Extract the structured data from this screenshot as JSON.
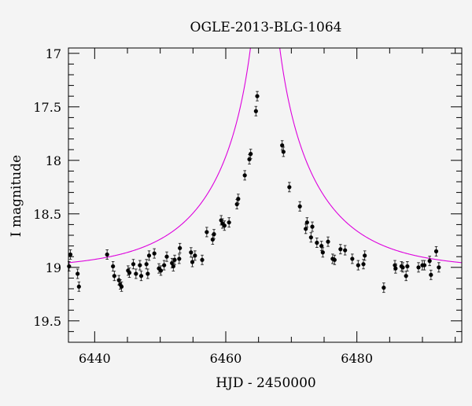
{
  "chart_data": {
    "type": "scatter",
    "title": "OGLE-2013-BLG-1064",
    "xlabel": "HJD - 2450000",
    "ylabel": "I magnitude",
    "xlim": [
      6436,
      6496
    ],
    "ylim": [
      19.7,
      16.95
    ],
    "y_inverted": true,
    "grid": false,
    "legend": "none",
    "x_ticks": [
      6440,
      6460,
      6480
    ],
    "x_tick_labels": [
      "6440",
      "6460",
      "6480"
    ],
    "y_ticks": [
      17,
      17.5,
      18,
      18.5,
      19,
      19.5
    ],
    "y_tick_labels": [
      "17",
      "17.5",
      "18",
      "18.5",
      "19",
      "19.5"
    ],
    "series": [
      {
        "type": "scatter",
        "color": "#000000",
        "points": [
          [
            6436.1,
            18.99
          ],
          [
            6436.3,
            18.88
          ],
          [
            6437.4,
            19.06
          ],
          [
            6437.6,
            19.18
          ],
          [
            6441.9,
            18.88
          ],
          [
            6442.8,
            18.99
          ],
          [
            6443.0,
            19.08
          ],
          [
            6443.7,
            19.12
          ],
          [
            6443.9,
            19.16
          ],
          [
            6444.1,
            19.18
          ],
          [
            6445.1,
            19.03
          ],
          [
            6445.3,
            19.05
          ],
          [
            6445.9,
            18.97
          ],
          [
            6446.3,
            19.06
          ],
          [
            6446.9,
            18.98
          ],
          [
            6447.1,
            19.08
          ],
          [
            6447.9,
            18.97
          ],
          [
            6448.1,
            19.06
          ],
          [
            6448.3,
            18.89
          ],
          [
            6449.1,
            18.87
          ],
          [
            6449.8,
            19.01
          ],
          [
            6450.1,
            19.03
          ],
          [
            6450.6,
            18.98
          ],
          [
            6451.0,
            18.9
          ],
          [
            6451.8,
            18.96
          ],
          [
            6452.0,
            18.99
          ],
          [
            6452.2,
            18.93
          ],
          [
            6452.9,
            18.92
          ],
          [
            6453.0,
            18.82
          ],
          [
            6454.7,
            18.86
          ],
          [
            6454.9,
            18.95
          ],
          [
            6455.3,
            18.89
          ],
          [
            6456.4,
            18.93
          ],
          [
            6457.1,
            18.67
          ],
          [
            6458.0,
            18.74
          ],
          [
            6458.2,
            18.69
          ],
          [
            6459.3,
            18.56
          ],
          [
            6459.5,
            18.59
          ],
          [
            6459.8,
            18.61
          ],
          [
            6460.5,
            18.58
          ],
          [
            6461.7,
            18.41
          ],
          [
            6461.9,
            18.36
          ],
          [
            6462.9,
            18.14
          ],
          [
            6463.6,
            17.99
          ],
          [
            6463.8,
            17.94
          ],
          [
            6464.6,
            17.54
          ],
          [
            6464.8,
            17.4
          ],
          [
            6468.6,
            17.86
          ],
          [
            6468.8,
            17.92
          ],
          [
            6469.7,
            18.25
          ],
          [
            6471.3,
            18.43
          ],
          [
            6472.2,
            18.64
          ],
          [
            6472.4,
            18.58
          ],
          [
            6473.0,
            18.72
          ],
          [
            6473.2,
            18.62
          ],
          [
            6473.9,
            18.77
          ],
          [
            6474.6,
            18.8
          ],
          [
            6474.8,
            18.86
          ],
          [
            6475.6,
            18.76
          ],
          [
            6476.3,
            18.92
          ],
          [
            6476.6,
            18.93
          ],
          [
            6477.5,
            18.83
          ],
          [
            6478.2,
            18.84
          ],
          [
            6479.3,
            18.92
          ],
          [
            6480.2,
            18.98
          ],
          [
            6481.0,
            18.97
          ],
          [
            6481.2,
            18.89
          ],
          [
            6484.1,
            19.19
          ],
          [
            6485.8,
            18.98
          ],
          [
            6485.9,
            19.01
          ],
          [
            6486.8,
            18.99
          ],
          [
            6487.0,
            19.0
          ],
          [
            6487.5,
            19.08
          ],
          [
            6487.7,
            18.99
          ],
          [
            6489.4,
            19.0
          ],
          [
            6490.0,
            18.98
          ],
          [
            6490.3,
            18.98
          ],
          [
            6491.1,
            18.94
          ],
          [
            6491.3,
            19.07
          ],
          [
            6492.1,
            18.85
          ],
          [
            6492.5,
            19.0
          ]
        ]
      },
      {
        "type": "line",
        "color": "#dd00dd",
        "model": "point-lens fit",
        "baseline": 19.02,
        "t0": 6466.0,
        "tE": 15.0,
        "u0": 0.015
      }
    ]
  }
}
